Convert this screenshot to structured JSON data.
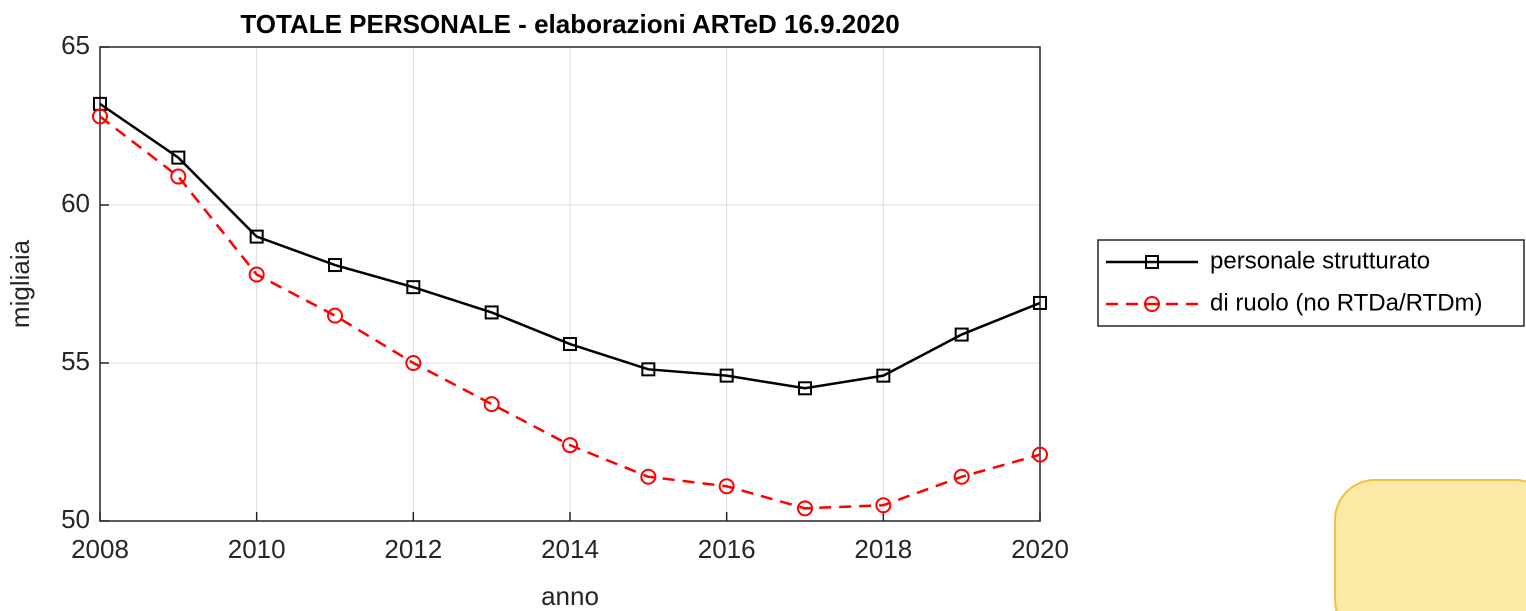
{
  "chart_data": {
    "type": "line",
    "title": "TOTALE PERSONALE - elaborazioni ARTeD 16.9.2020",
    "x_label": "anno",
    "y_label": "migliaia",
    "x": [
      2008,
      2009,
      2010,
      2011,
      2012,
      2013,
      2014,
      2015,
      2016,
      2017,
      2018,
      2019,
      2020
    ],
    "series": [
      {
        "name": "personale strutturato",
        "color": "#000000",
        "dash": "solid",
        "marker": "square",
        "values": [
          63.2,
          61.5,
          59.0,
          58.1,
          57.4,
          56.6,
          55.6,
          54.8,
          54.6,
          54.2,
          54.6,
          55.9,
          56.9
        ]
      },
      {
        "name": "di ruolo (no RTDa/RTDm)",
        "color": "#ff0000",
        "dash": "dashed",
        "marker": "circle",
        "values": [
          62.8,
          60.9,
          57.8,
          56.5,
          55.0,
          53.7,
          52.4,
          51.4,
          51.1,
          50.4,
          50.5,
          51.4,
          52.1
        ]
      }
    ],
    "xlim": [
      2008,
      2020
    ],
    "xticks": [
      2008,
      2010,
      2012,
      2014,
      2016,
      2018,
      2020
    ],
    "ylim": [
      50,
      65
    ],
    "yticks": [
      50,
      55,
      60,
      65
    ],
    "grid": true,
    "legend": "right"
  }
}
